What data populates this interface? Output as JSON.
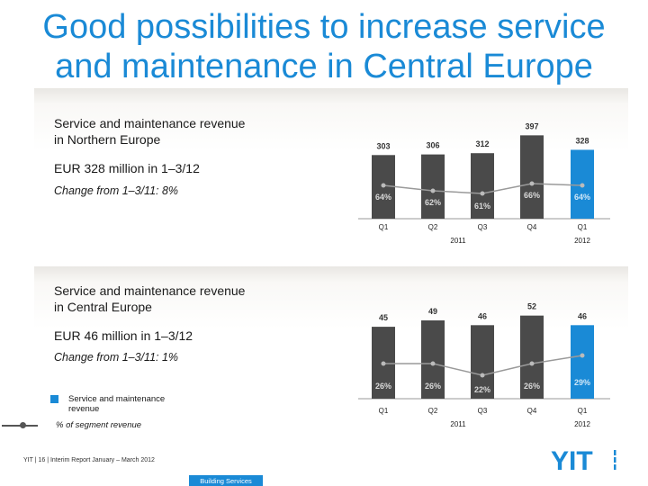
{
  "title_line1": "Good possibilities to increase service",
  "title_line2": "and maintenance in Central Europe",
  "panels": {
    "north": {
      "heading1": "Service and maintenance revenue",
      "heading2": "in Northern Europe",
      "amount": "EUR 328 million in 1–3/12",
      "change": "Change from 1–3/11: 8%"
    },
    "central": {
      "heading1": "Service and maintenance revenue",
      "heading2": "in Central Europe",
      "amount": "EUR 46 million in 1–3/12",
      "change": "Change from 1–3/11: 1%"
    }
  },
  "legend": {
    "bar_label": "Service and maintenance revenue",
    "line_label": "% of segment revenue"
  },
  "footer": {
    "text": "YIT  |  16  |  Interim Report January – March 2012",
    "division": "Building Services",
    "logo_text": "YIT"
  },
  "colors": {
    "accent": "#1a8ad6",
    "bar": "#4a4a4a",
    "line": "#9a9a9a",
    "title": "#1a8ad6"
  },
  "chart_data": [
    {
      "type": "bar",
      "categories": [
        "Q1",
        "Q2",
        "Q3",
        "Q4",
        "Q1"
      ],
      "year_labels": [
        "2011",
        "2012"
      ],
      "series": [
        {
          "values": [
            303,
            306,
            312,
            397,
            328
          ]
        },
        {
          "values": [
            64,
            62,
            61,
            66,
            64
          ],
          "value_labels": [
            "64%",
            "62%",
            "61%",
            "66%",
            "64%"
          ]
        }
      ],
      "ylim": [
        0,
        420
      ],
      "highlight_index": 4
    },
    {
      "type": "bar",
      "categories": [
        "Q1",
        "Q2",
        "Q3",
        "Q4",
        "Q1"
      ],
      "year_labels": [
        "2011",
        "2012"
      ],
      "series": [
        {
          "values": [
            45,
            49,
            46,
            52,
            46
          ]
        },
        {
          "values": [
            26,
            26,
            22,
            26,
            29
          ],
          "value_labels": [
            "26%",
            "26%",
            "22%",
            "26%",
            "29%"
          ]
        }
      ],
      "ylim": [
        0,
        58
      ],
      "highlight_index": 4
    }
  ]
}
